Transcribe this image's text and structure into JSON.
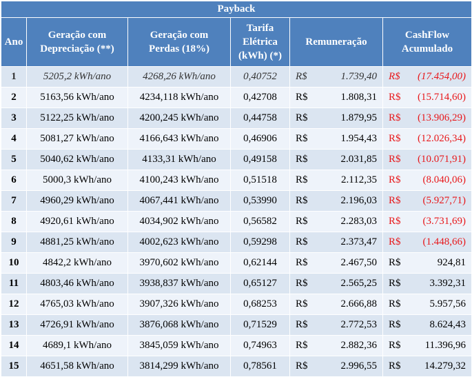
{
  "title": "Payback",
  "headers": {
    "ano": "Ano",
    "geracao_dep": [
      "Geração com",
      "Depreciação (**)"
    ],
    "geracao_perdas": [
      "Geração com",
      "Perdas (18%)"
    ],
    "tarifa": [
      "Tarifa",
      "Elétrica",
      "(kWh) (*)"
    ],
    "remuneracao": "Remuneração",
    "cashflow": [
      "CashFlow",
      "Acumulado"
    ]
  },
  "currency": "R$",
  "rows": [
    {
      "ano": "1",
      "geracao_dep": "5205,2 kWh/ano",
      "geracao_perdas": "4268,26 kWh/ano",
      "tarifa": "0,40752",
      "remuneracao": "1.739,40",
      "cashflow": "(17.454,00)",
      "negative": true
    },
    {
      "ano": "2",
      "geracao_dep": "5163,56 kWh/ano",
      "geracao_perdas": "4234,118 kWh/ano",
      "tarifa": "0,42708",
      "remuneracao": "1.808,31",
      "cashflow": "(15.714,60)",
      "negative": true
    },
    {
      "ano": "3",
      "geracao_dep": "5122,25 kWh/ano",
      "geracao_perdas": "4200,245 kWh/ano",
      "tarifa": "0,44758",
      "remuneracao": "1.879,95",
      "cashflow": "(13.906,29)",
      "negative": true
    },
    {
      "ano": "4",
      "geracao_dep": "5081,27 kWh/ano",
      "geracao_perdas": "4166,643 kWh/ano",
      "tarifa": "0,46906",
      "remuneracao": "1.954,43",
      "cashflow": "(12.026,34)",
      "negative": true
    },
    {
      "ano": "5",
      "geracao_dep": "5040,62 kWh/ano",
      "geracao_perdas": "4133,31 kWh/ano",
      "tarifa": "0,49158",
      "remuneracao": "2.031,85",
      "cashflow": "(10.071,91)",
      "negative": true
    },
    {
      "ano": "6",
      "geracao_dep": "5000,3 kWh/ano",
      "geracao_perdas": "4100,243 kWh/ano",
      "tarifa": "0,51518",
      "remuneracao": "2.112,35",
      "cashflow": "(8.040,06)",
      "negative": true
    },
    {
      "ano": "7",
      "geracao_dep": "4960,29 kWh/ano",
      "geracao_perdas": "4067,441 kWh/ano",
      "tarifa": "0,53990",
      "remuneracao": "2.196,03",
      "cashflow": "(5.927,71)",
      "negative": true
    },
    {
      "ano": "8",
      "geracao_dep": "4920,61 kWh/ano",
      "geracao_perdas": "4034,902 kWh/ano",
      "tarifa": "0,56582",
      "remuneracao": "2.283,03",
      "cashflow": "(3.731,69)",
      "negative": true
    },
    {
      "ano": "9",
      "geracao_dep": "4881,25 kWh/ano",
      "geracao_perdas": "4002,623 kWh/ano",
      "tarifa": "0,59298",
      "remuneracao": "2.373,47",
      "cashflow": "(1.448,66)",
      "negative": true
    },
    {
      "ano": "10",
      "geracao_dep": "4842,2 kWh/ano",
      "geracao_perdas": "3970,602 kWh/ano",
      "tarifa": "0,62144",
      "remuneracao": "2.467,50",
      "cashflow": "924,81",
      "negative": false
    },
    {
      "ano": "11",
      "geracao_dep": "4803,46 kWh/ano",
      "geracao_perdas": "3938,837 kWh/ano",
      "tarifa": "0,65127",
      "remuneracao": "2.565,25",
      "cashflow": "3.392,31",
      "negative": false
    },
    {
      "ano": "12",
      "geracao_dep": "4765,03 kWh/ano",
      "geracao_perdas": "3907,326 kWh/ano",
      "tarifa": "0,68253",
      "remuneracao": "2.666,88",
      "cashflow": "5.957,56",
      "negative": false
    },
    {
      "ano": "13",
      "geracao_dep": "4726,91 kWh/ano",
      "geracao_perdas": "3876,068 kWh/ano",
      "tarifa": "0,71529",
      "remuneracao": "2.772,53",
      "cashflow": "8.624,43",
      "negative": false
    },
    {
      "ano": "14",
      "geracao_dep": "4689,1 kWh/ano",
      "geracao_perdas": "3845,059 kWh/ano",
      "tarifa": "0,74963",
      "remuneracao": "2.882,36",
      "cashflow": "11.396,96",
      "negative": false
    },
    {
      "ano": "15",
      "geracao_dep": "4651,58 kWh/ano",
      "geracao_perdas": "3814,299 kWh/ano",
      "tarifa": "0,78561",
      "remuneracao": "2.996,55",
      "cashflow": "14.279,32",
      "negative": false
    }
  ],
  "colors": {
    "header_bg": "#4f81bd",
    "row_odd": "#dbe5f1",
    "row_even": "#eef3fa",
    "negative": "#e8171a"
  }
}
